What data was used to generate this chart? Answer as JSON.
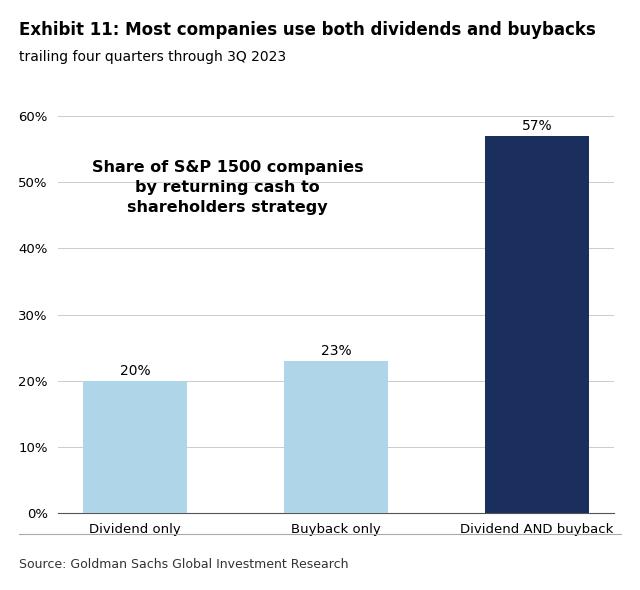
{
  "title_bold": "Exhibit 11: Most companies use both dividends and buybacks",
  "title_sub": "trailing four quarters through 3Q 2023",
  "categories": [
    "Dividend only",
    "Buyback only",
    "Dividend AND buyback"
  ],
  "values": [
    0.2,
    0.23,
    0.57
  ],
  "labels": [
    "20%",
    "23%",
    "57%"
  ],
  "bar_colors": [
    "#aed6e8",
    "#aed6e8",
    "#1b2f5e"
  ],
  "ylim": [
    0,
    0.65
  ],
  "yticks": [
    0.0,
    0.1,
    0.2,
    0.3,
    0.4,
    0.5,
    0.6
  ],
  "yticklabels": [
    "0%",
    "10%",
    "20%",
    "30%",
    "40%",
    "50%",
    "60%"
  ],
  "annotation_text": "Share of S&P 1500 companies\nby returning cash to\nshareholders strategy",
  "annotation_fontsize": 11.5,
  "source_text": "Source: Goldman Sachs Global Investment Research",
  "bg_color": "#ffffff",
  "chart_bg_color": "#ffffff",
  "label_fontsize": 10,
  "tick_fontsize": 9.5,
  "bar_width": 0.52,
  "title_fontsize": 12,
  "subtitle_fontsize": 10
}
